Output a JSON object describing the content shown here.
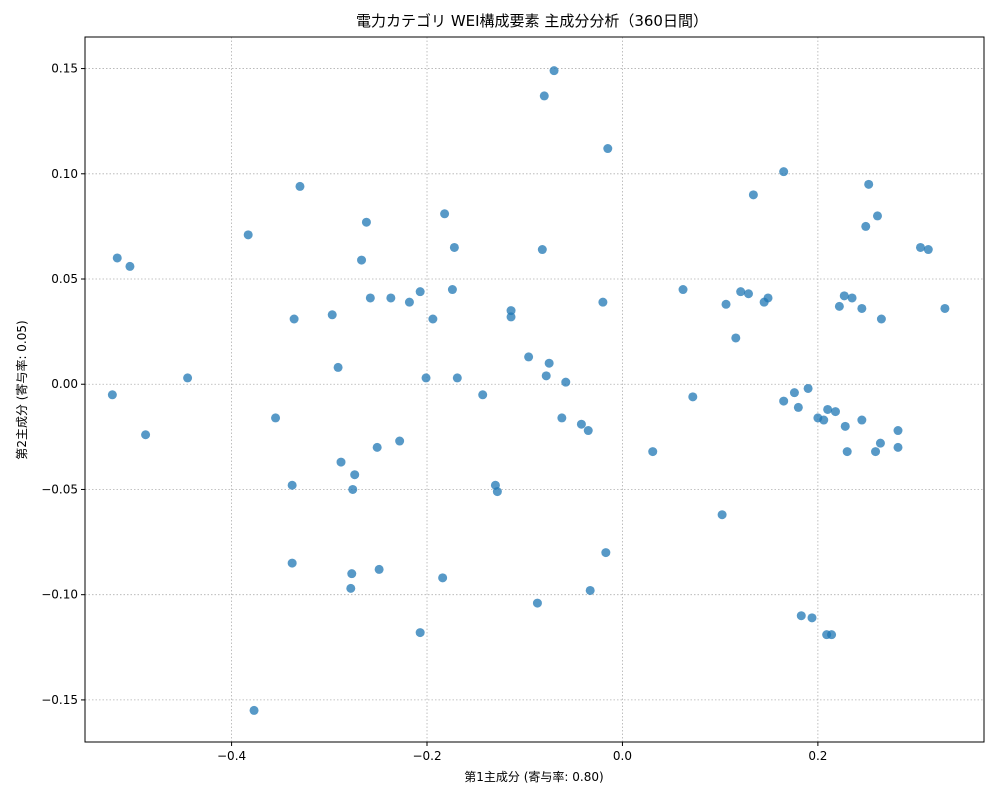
{
  "chart_data": {
    "type": "scatter",
    "title": "電力カテゴリ WEI構成要素 主成分分析（360日間）",
    "xlabel": "第1主成分 (寄与率: 0.80)",
    "ylabel": "第2主成分 (寄与率: 0.05)",
    "xlim": [
      -0.55,
      0.37
    ],
    "ylim": [
      -0.17,
      0.165
    ],
    "xticks": [
      -0.4,
      -0.2,
      0.0,
      0.2
    ],
    "xtick_labels": [
      "−0.4",
      "−0.2",
      "0.0",
      "0.2"
    ],
    "yticks": [
      -0.15,
      -0.1,
      -0.05,
      0.0,
      0.05,
      0.1,
      0.15
    ],
    "ytick_labels": [
      "−0.15",
      "−0.10",
      "−0.05",
      "0.00",
      "0.05",
      "0.10",
      "0.15"
    ],
    "grid": true,
    "marker_color": "#1f77b4",
    "points": [
      [
        -0.07,
        0.149
      ],
      [
        -0.08,
        0.137
      ],
      [
        -0.015,
        0.112
      ],
      [
        -0.33,
        0.094
      ],
      [
        -0.182,
        0.081
      ],
      [
        -0.262,
        0.077
      ],
      [
        -0.383,
        0.071
      ],
      [
        -0.517,
        0.06
      ],
      [
        -0.504,
        0.056
      ],
      [
        -0.172,
        0.065
      ],
      [
        -0.082,
        0.064
      ],
      [
        -0.267,
        0.059
      ],
      [
        -0.174,
        0.045
      ],
      [
        -0.207,
        0.044
      ],
      [
        -0.237,
        0.041
      ],
      [
        -0.258,
        0.041
      ],
      [
        -0.218,
        0.039
      ],
      [
        -0.02,
        0.039
      ],
      [
        -0.114,
        0.035
      ],
      [
        -0.297,
        0.033
      ],
      [
        -0.114,
        0.032
      ],
      [
        -0.336,
        0.031
      ],
      [
        -0.194,
        0.031
      ],
      [
        -0.096,
        0.013
      ],
      [
        -0.075,
        0.01
      ],
      [
        -0.291,
        0.008
      ],
      [
        -0.078,
        0.004
      ],
      [
        -0.445,
        0.003
      ],
      [
        -0.201,
        0.003
      ],
      [
        -0.169,
        0.003
      ],
      [
        -0.058,
        0.001
      ],
      [
        -0.522,
        -0.005
      ],
      [
        -0.143,
        -0.005
      ],
      [
        -0.355,
        -0.016
      ],
      [
        -0.062,
        -0.016
      ],
      [
        -0.042,
        -0.019
      ],
      [
        -0.035,
        -0.022
      ],
      [
        -0.488,
        -0.024
      ],
      [
        -0.228,
        -0.027
      ],
      [
        -0.251,
        -0.03
      ],
      [
        0.031,
        -0.032
      ],
      [
        -0.288,
        -0.037
      ],
      [
        -0.274,
        -0.043
      ],
      [
        -0.338,
        -0.048
      ],
      [
        -0.13,
        -0.048
      ],
      [
        -0.276,
        -0.05
      ],
      [
        -0.128,
        -0.051
      ],
      [
        0.102,
        -0.062
      ],
      [
        -0.017,
        -0.08
      ],
      [
        -0.338,
        -0.085
      ],
      [
        -0.249,
        -0.088
      ],
      [
        -0.277,
        -0.09
      ],
      [
        -0.184,
        -0.092
      ],
      [
        -0.278,
        -0.097
      ],
      [
        -0.033,
        -0.098
      ],
      [
        -0.087,
        -0.104
      ],
      [
        -0.207,
        -0.118
      ],
      [
        -0.377,
        -0.155
      ],
      [
        0.062,
        0.045
      ],
      [
        0.106,
        0.038
      ],
      [
        0.121,
        0.044
      ],
      [
        0.129,
        0.043
      ],
      [
        0.149,
        0.041
      ],
      [
        0.145,
        0.039
      ],
      [
        0.134,
        0.09
      ],
      [
        0.165,
        0.101
      ],
      [
        0.252,
        0.095
      ],
      [
        0.261,
        0.08
      ],
      [
        0.249,
        0.075
      ],
      [
        0.305,
        0.065
      ],
      [
        0.313,
        0.064
      ],
      [
        0.227,
        0.042
      ],
      [
        0.235,
        0.041
      ],
      [
        0.222,
        0.037
      ],
      [
        0.245,
        0.036
      ],
      [
        0.33,
        0.036
      ],
      [
        0.265,
        0.031
      ],
      [
        0.116,
        0.022
      ],
      [
        0.072,
        -0.006
      ],
      [
        0.19,
        -0.002
      ],
      [
        0.176,
        -0.004
      ],
      [
        0.165,
        -0.008
      ],
      [
        0.18,
        -0.011
      ],
      [
        0.21,
        -0.012
      ],
      [
        0.218,
        -0.013
      ],
      [
        0.2,
        -0.016
      ],
      [
        0.206,
        -0.017
      ],
      [
        0.245,
        -0.017
      ],
      [
        0.228,
        -0.02
      ],
      [
        0.282,
        -0.022
      ],
      [
        0.264,
        -0.028
      ],
      [
        0.282,
        -0.03
      ],
      [
        0.23,
        -0.032
      ],
      [
        0.259,
        -0.032
      ],
      [
        0.183,
        -0.11
      ],
      [
        0.194,
        -0.111
      ],
      [
        0.209,
        -0.119
      ],
      [
        0.214,
        -0.119
      ]
    ]
  }
}
